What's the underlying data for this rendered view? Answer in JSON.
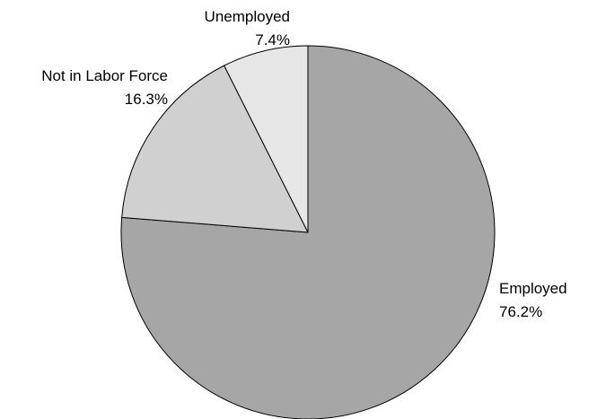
{
  "chart_data": {
    "type": "pie",
    "title": "",
    "start": "12 o'clock",
    "direction": "clockwise",
    "slices": [
      {
        "label": "Employed",
        "value": 76.2,
        "value_label": "76.2%",
        "color": "#a6a6a6"
      },
      {
        "label": "Not in Labor Force",
        "value": 16.3,
        "value_label": "16.3%",
        "color": "#d0d0d0"
      },
      {
        "label": "Unemployed",
        "value": 7.4,
        "value_label": "7.4%",
        "color": "#e6e6e6"
      }
    ]
  }
}
